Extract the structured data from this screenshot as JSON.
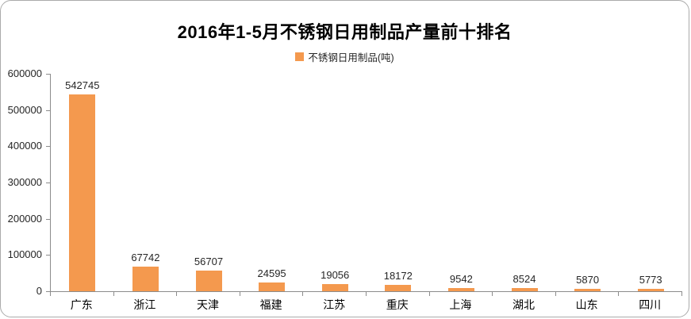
{
  "chart_data": {
    "type": "bar",
    "title": "2016年1-5月不锈钢日用制品产量前十排名",
    "series_name": "不锈钢日用制品(吨)",
    "categories": [
      "广东",
      "浙江",
      "天津",
      "福建",
      "江苏",
      "重庆",
      "上海",
      "湖北",
      "山东",
      "四川"
    ],
    "values": [
      542745,
      67742,
      56707,
      24595,
      19056,
      18172,
      9542,
      8524,
      5870,
      5773
    ],
    "data_labels": [
      "542745",
      "67742",
      "56707",
      "24595",
      "19056",
      "18172",
      "9542",
      "8524",
      "5870",
      "5773"
    ],
    "xlabel": "",
    "ylabel": "",
    "ylim": [
      0,
      600000
    ],
    "ytick_interval": 100000,
    "ytick_labels": [
      "0",
      "100000",
      "200000",
      "300000",
      "400000",
      "500000",
      "600000"
    ],
    "grid": false,
    "legend_position": "top",
    "bar_color": "#F4994E",
    "axis_color": "#8C8C8C",
    "text_color": "#262626",
    "frame_border_color": "#ABABAB"
  }
}
